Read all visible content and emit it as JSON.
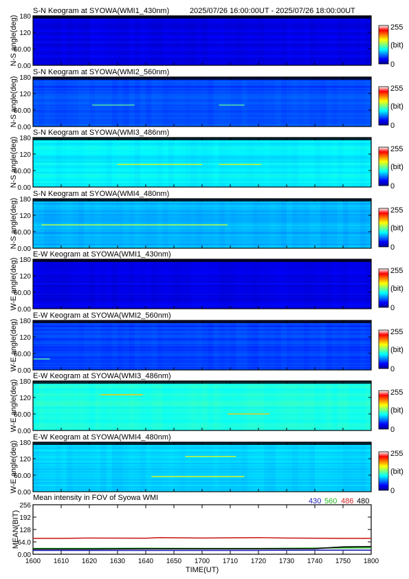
{
  "header": {
    "time_range": "2025/07/26 16:00:00UT - 2025/07/26 18:00:00UT"
  },
  "colorbar": {
    "max_label": "255",
    "unit_label": "(bit)",
    "min_label": "0"
  },
  "chart_data": [
    {
      "type": "heatmap",
      "title": "S-N Keogram at SYOWA(WMI1_430nm)",
      "ylabel": "N-S angle(deg)",
      "yticks": [
        "180",
        "120",
        "60.00",
        "0.00"
      ],
      "ylim": [
        0,
        180
      ],
      "xlim": [
        "16:00",
        "18:00"
      ],
      "level": 0.1,
      "colormap": "jet",
      "clim": [
        0,
        255
      ],
      "features": []
    },
    {
      "type": "heatmap",
      "title": "S-N Keogram at SYOWA(WMI2_560nm)",
      "ylabel": "N-S angle(deg)",
      "yticks": [
        "180",
        "120",
        "60.00",
        "0.00"
      ],
      "ylim": [
        0,
        180
      ],
      "xlim": [
        "16:00",
        "18:00"
      ],
      "level": 0.2,
      "colormap": "jet",
      "clim": [
        0,
        255
      ],
      "features": [
        {
          "x": [
            16.35,
            16.6
          ],
          "y": 78
        },
        {
          "x": [
            17.1,
            17.25
          ],
          "y": 78
        }
      ]
    },
    {
      "type": "heatmap",
      "title": "S-N Keogram at SYOWA(WMI3_486nm)",
      "ylabel": "N-S angle(deg)",
      "yticks": [
        "180",
        "120",
        "60.00",
        "0.00"
      ],
      "ylim": [
        0,
        180
      ],
      "xlim": [
        "16:00",
        "18:00"
      ],
      "level": 0.36,
      "colormap": "jet",
      "clim": [
        0,
        255
      ],
      "features": [
        {
          "x": [
            16.5,
            17.0
          ],
          "y": 82
        },
        {
          "x": [
            17.1,
            17.35
          ],
          "y": 82
        }
      ]
    },
    {
      "type": "heatmap",
      "title": "S-N Keogram at SYOWA(WMI4_480nm)",
      "ylabel": "N-S angle(deg)",
      "yticks": [
        "180",
        "120",
        "60.00",
        "0.00"
      ],
      "ylim": [
        0,
        180
      ],
      "xlim": [
        "16:00",
        "18:00"
      ],
      "level": 0.3,
      "colormap": "jet",
      "clim": [
        0,
        255
      ],
      "features": [
        {
          "x": [
            16.05,
            17.15
          ],
          "y": 85
        }
      ]
    },
    {
      "type": "heatmap",
      "title": "E-W Keogram at SYOWA(WMI1_430nm)",
      "ylabel": "W-E angle(deg)",
      "yticks": [
        "180",
        "120",
        "60.00",
        "0.00"
      ],
      "ylim": [
        0,
        180
      ],
      "xlim": [
        "16:00",
        "18:00"
      ],
      "level": 0.1,
      "colormap": "jet",
      "clim": [
        0,
        255
      ],
      "features": []
    },
    {
      "type": "heatmap",
      "title": "E-W Keogram at SYOWA(WMI2_560nm)",
      "ylabel": "W-E angle(deg)",
      "yticks": [
        "180",
        "120",
        "60.00",
        "0.00"
      ],
      "ylim": [
        0,
        180
      ],
      "xlim": [
        "16:00",
        "18:00"
      ],
      "level": 0.19,
      "colormap": "jet",
      "clim": [
        0,
        255
      ],
      "features": [
        {
          "x": [
            16.0,
            16.1
          ],
          "y": 40
        }
      ]
    },
    {
      "type": "heatmap",
      "title": "E-W Keogram at SYOWA(WMI3_486nm)",
      "ylabel": "W-E angle(deg)",
      "yticks": [
        "180",
        "120",
        "60.00",
        "0.00"
      ],
      "ylim": [
        0,
        180
      ],
      "xlim": [
        "16:00",
        "18:00"
      ],
      "level": 0.4,
      "colormap": "jet",
      "clim": [
        0,
        255
      ],
      "features": [
        {
          "x": [
            16.4,
            16.65
          ],
          "y": 130
        },
        {
          "x": [
            17.15,
            17.4
          ],
          "y": 60
        }
      ]
    },
    {
      "type": "heatmap",
      "title": "E-W Keogram at SYOWA(WMI4_480nm)",
      "ylabel": "W-E angle(deg)",
      "yticks": [
        "180",
        "120",
        "60.00",
        "0.00"
      ],
      "ylim": [
        0,
        180
      ],
      "xlim": [
        "16:00",
        "18:00"
      ],
      "level": 0.33,
      "colormap": "jet",
      "clim": [
        0,
        255
      ],
      "features": [
        {
          "x": [
            16.9,
            17.2
          ],
          "y": 128
        },
        {
          "x": [
            16.7,
            17.25
          ],
          "y": 55
        }
      ]
    },
    {
      "type": "line",
      "title": "Mean intensity in FOV of Syowa WMI",
      "ylabel": "MEAN(BIT)",
      "xlabel": "TIME(UT)",
      "x_ticks": [
        "1600",
        "1610",
        "1620",
        "1630",
        "1640",
        "1650",
        "1700",
        "1710",
        "1720",
        "1730",
        "1740",
        "1750",
        "1800"
      ],
      "y_ticks": [
        "256",
        "192",
        "128",
        "64.0",
        "0.00"
      ],
      "ylim": [
        0,
        256
      ],
      "xlim": [
        0,
        120
      ],
      "series": [
        {
          "name": "430",
          "color": "#1a1ab4",
          "x": [
            0,
            20,
            40,
            60,
            80,
            100,
            120
          ],
          "values": [
            20,
            20,
            20,
            20,
            20,
            21,
            21
          ]
        },
        {
          "name": "560",
          "color": "#22bb22",
          "x": [
            0,
            20,
            40,
            60,
            80,
            100,
            120
          ],
          "values": [
            30,
            30,
            31,
            30,
            30,
            32,
            33
          ]
        },
        {
          "name": "486",
          "color": "#cc2222",
          "x": [
            0,
            10,
            20,
            40,
            45,
            50,
            60,
            80,
            90,
            100,
            110,
            120
          ],
          "values": [
            82,
            82,
            84,
            83,
            86,
            85,
            84,
            86,
            84,
            83,
            82,
            82
          ]
        },
        {
          "name": "480",
          "color": "#000000",
          "x": [
            0,
            20,
            40,
            60,
            80,
            100,
            110,
            120
          ],
          "values": [
            27,
            27,
            28,
            28,
            28,
            29,
            38,
            40
          ]
        }
      ]
    }
  ]
}
